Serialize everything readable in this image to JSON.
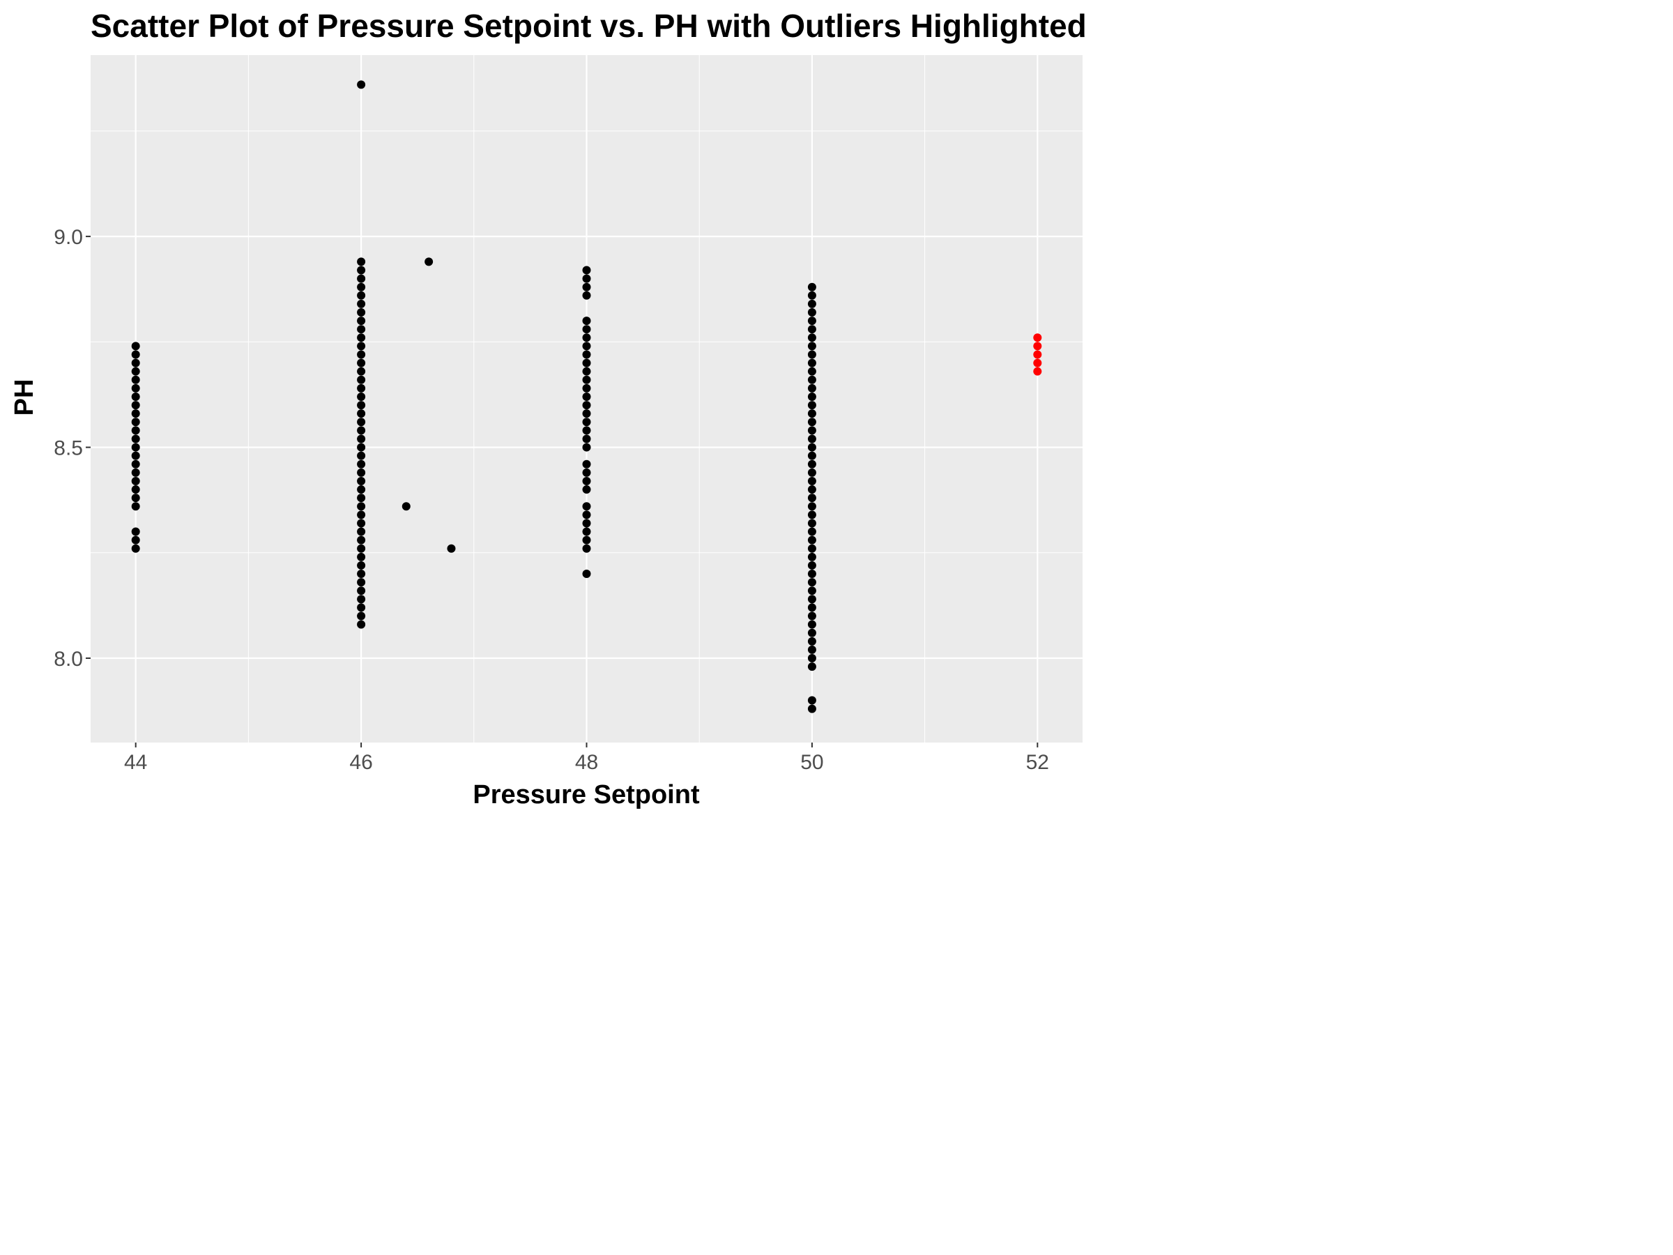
{
  "chart_data": {
    "type": "scatter",
    "title": "Scatter Plot of Pressure Setpoint vs. PH with Outliers Highlighted",
    "xlabel": "Pressure Setpoint",
    "ylabel": "PH",
    "xlim": [
      43.6,
      52.4
    ],
    "ylim": [
      7.8,
      9.43
    ],
    "x_ticks": [
      44,
      46,
      48,
      50,
      52
    ],
    "x_tick_labels": [
      "44",
      "46",
      "48",
      "50",
      "52"
    ],
    "y_ticks": [
      8.0,
      8.5,
      9.0
    ],
    "y_tick_labels": [
      "8.0",
      "8.5",
      "9.0"
    ],
    "grid": true,
    "legend": "none",
    "colors": {
      "panel_background": "#ebebeb",
      "grid": "#ffffff",
      "normal_point": "#000000",
      "outlier_point": "#ff0000"
    },
    "series": [
      {
        "color": "#000000",
        "points": [
          [
            44,
            8.26
          ],
          [
            44,
            8.28
          ],
          [
            44,
            8.3
          ],
          [
            44,
            8.36
          ],
          [
            44,
            8.38
          ],
          [
            44,
            8.4
          ],
          [
            44,
            8.42
          ],
          [
            44,
            8.44
          ],
          [
            44,
            8.46
          ],
          [
            44,
            8.48
          ],
          [
            44,
            8.5
          ],
          [
            44,
            8.52
          ],
          [
            44,
            8.54
          ],
          [
            44,
            8.56
          ],
          [
            44,
            8.58
          ],
          [
            44,
            8.6
          ],
          [
            44,
            8.62
          ],
          [
            44,
            8.64
          ],
          [
            44,
            8.66
          ],
          [
            44,
            8.68
          ],
          [
            44,
            8.7
          ],
          [
            44,
            8.72
          ],
          [
            44,
            8.74
          ],
          [
            46,
            8.08
          ],
          [
            46,
            8.1
          ],
          [
            46,
            8.12
          ],
          [
            46,
            8.14
          ],
          [
            46,
            8.16
          ],
          [
            46,
            8.18
          ],
          [
            46,
            8.2
          ],
          [
            46,
            8.22
          ],
          [
            46,
            8.24
          ],
          [
            46,
            8.26
          ],
          [
            46,
            8.28
          ],
          [
            46,
            8.3
          ],
          [
            46,
            8.32
          ],
          [
            46,
            8.34
          ],
          [
            46,
            8.36
          ],
          [
            46,
            8.38
          ],
          [
            46,
            8.4
          ],
          [
            46,
            8.42
          ],
          [
            46,
            8.44
          ],
          [
            46,
            8.46
          ],
          [
            46,
            8.48
          ],
          [
            46,
            8.5
          ],
          [
            46,
            8.52
          ],
          [
            46,
            8.54
          ],
          [
            46,
            8.56
          ],
          [
            46,
            8.58
          ],
          [
            46,
            8.6
          ],
          [
            46,
            8.62
          ],
          [
            46,
            8.64
          ],
          [
            46,
            8.66
          ],
          [
            46,
            8.68
          ],
          [
            46,
            8.7
          ],
          [
            46,
            8.72
          ],
          [
            46,
            8.74
          ],
          [
            46,
            8.76
          ],
          [
            46,
            8.78
          ],
          [
            46,
            8.8
          ],
          [
            46,
            8.82
          ],
          [
            46,
            8.84
          ],
          [
            46,
            8.86
          ],
          [
            46,
            8.88
          ],
          [
            46,
            8.9
          ],
          [
            46,
            8.92
          ],
          [
            46,
            8.94
          ],
          [
            46,
            9.36
          ],
          [
            46.4,
            8.36
          ],
          [
            46.6,
            8.94
          ],
          [
            46.8,
            8.26
          ],
          [
            48,
            8.2
          ],
          [
            48,
            8.26
          ],
          [
            48,
            8.28
          ],
          [
            48,
            8.3
          ],
          [
            48,
            8.32
          ],
          [
            48,
            8.34
          ],
          [
            48,
            8.36
          ],
          [
            48,
            8.4
          ],
          [
            48,
            8.42
          ],
          [
            48,
            8.44
          ],
          [
            48,
            8.46
          ],
          [
            48,
            8.5
          ],
          [
            48,
            8.52
          ],
          [
            48,
            8.54
          ],
          [
            48,
            8.56
          ],
          [
            48,
            8.58
          ],
          [
            48,
            8.6
          ],
          [
            48,
            8.62
          ],
          [
            48,
            8.64
          ],
          [
            48,
            8.66
          ],
          [
            48,
            8.68
          ],
          [
            48,
            8.7
          ],
          [
            48,
            8.72
          ],
          [
            48,
            8.74
          ],
          [
            48,
            8.76
          ],
          [
            48,
            8.78
          ],
          [
            48,
            8.8
          ],
          [
            48,
            8.86
          ],
          [
            48,
            8.88
          ],
          [
            48,
            8.9
          ],
          [
            48,
            8.92
          ],
          [
            50,
            7.88
          ],
          [
            50,
            7.9
          ],
          [
            50,
            7.98
          ],
          [
            50,
            8.0
          ],
          [
            50,
            8.02
          ],
          [
            50,
            8.04
          ],
          [
            50,
            8.06
          ],
          [
            50,
            8.08
          ],
          [
            50,
            8.1
          ],
          [
            50,
            8.12
          ],
          [
            50,
            8.14
          ],
          [
            50,
            8.16
          ],
          [
            50,
            8.18
          ],
          [
            50,
            8.2
          ],
          [
            50,
            8.22
          ],
          [
            50,
            8.24
          ],
          [
            50,
            8.26
          ],
          [
            50,
            8.28
          ],
          [
            50,
            8.3
          ],
          [
            50,
            8.32
          ],
          [
            50,
            8.34
          ],
          [
            50,
            8.36
          ],
          [
            50,
            8.38
          ],
          [
            50,
            8.4
          ],
          [
            50,
            8.42
          ],
          [
            50,
            8.44
          ],
          [
            50,
            8.46
          ],
          [
            50,
            8.48
          ],
          [
            50,
            8.5
          ],
          [
            50,
            8.52
          ],
          [
            50,
            8.54
          ],
          [
            50,
            8.56
          ],
          [
            50,
            8.58
          ],
          [
            50,
            8.6
          ],
          [
            50,
            8.62
          ],
          [
            50,
            8.64
          ],
          [
            50,
            8.66
          ],
          [
            50,
            8.68
          ],
          [
            50,
            8.7
          ],
          [
            50,
            8.72
          ],
          [
            50,
            8.74
          ],
          [
            50,
            8.76
          ],
          [
            50,
            8.78
          ],
          [
            50,
            8.8
          ],
          [
            50,
            8.82
          ],
          [
            50,
            8.84
          ],
          [
            50,
            8.86
          ],
          [
            50,
            8.88
          ]
        ]
      },
      {
        "color": "#ff0000",
        "points": [
          [
            52,
            8.68
          ],
          [
            52,
            8.7
          ],
          [
            52,
            8.72
          ],
          [
            52,
            8.74
          ],
          [
            52,
            8.76
          ]
        ]
      }
    ]
  }
}
